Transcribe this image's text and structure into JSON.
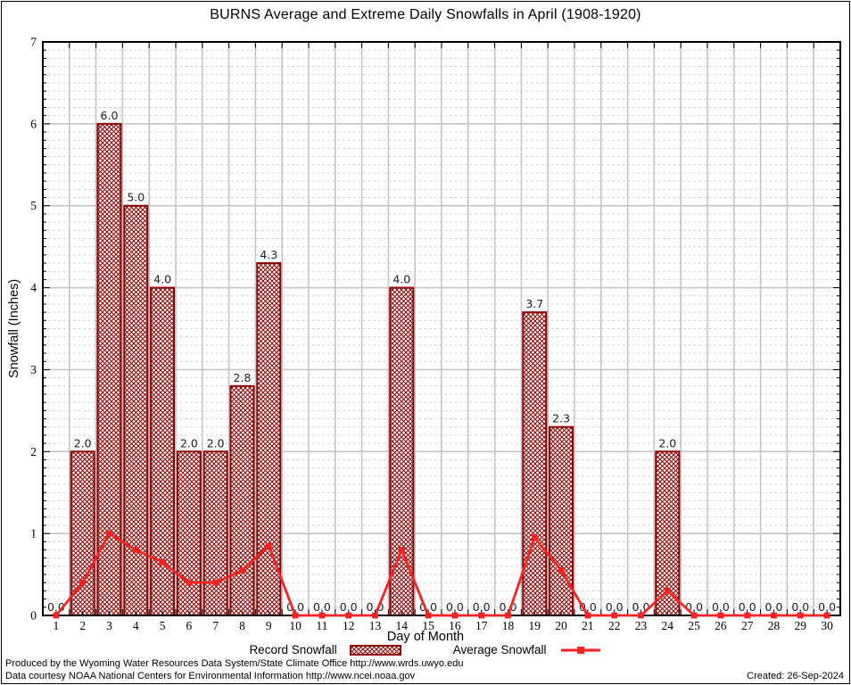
{
  "title": "BURNS Average and Extreme Daily Snowfalls in April (1908-1920)",
  "y_axis": {
    "label": "Snowfall (Inches)",
    "min": 0,
    "max": 7
  },
  "x_axis": {
    "label": "Day of Month"
  },
  "legend": {
    "record": "Record Snowfall",
    "average": "Average Snowfall"
  },
  "footer": {
    "line1": "Produced by the Wyoming Water Resources Data System/State Climate Office http://www.wrds.uwyo.edu",
    "line2": "Data courtesy NOAA National Centers for Environmental Information http://www.ncei.noaa.gov",
    "created": "Created: 26-Sep-2024"
  },
  "colors": {
    "bar": "#8b0000",
    "average_line": "#f72222",
    "grid_major": "#c4c4c4",
    "grid_minor": "#c9c9c9",
    "value_label": "#1f1f1f",
    "frame": "#000000"
  },
  "chart_data": {
    "type": "bar",
    "title": "BURNS Average and Extreme Daily Snowfalls in April (1908-1920)",
    "xlabel": "Day of Month",
    "ylabel": "Snowfall (Inches)",
    "ylim": [
      0,
      7
    ],
    "grid": "on (solid major, dashed 0.1 minor)",
    "legend_position": "bottom-center",
    "x": [
      1,
      2,
      3,
      4,
      5,
      6,
      7,
      8,
      9,
      10,
      11,
      12,
      13,
      14,
      15,
      16,
      17,
      18,
      19,
      20,
      21,
      22,
      23,
      24,
      25,
      26,
      27,
      28,
      29,
      30
    ],
    "x_ticks": [
      "1",
      "2",
      "3",
      "4",
      "5",
      "6",
      "7",
      "8",
      "9",
      "10",
      "11",
      "12",
      "13",
      "14",
      "15",
      "16",
      "17",
      "18",
      "19",
      "20",
      "21",
      "22",
      "23",
      "24",
      "25",
      "26",
      "27",
      "28",
      "29",
      "30"
    ],
    "y_ticks": [
      "0",
      "1",
      "2",
      "3",
      "4",
      "5",
      "6",
      "7"
    ],
    "series": [
      {
        "name": "Record Snowfall",
        "type": "bar",
        "style": "dark-red crosshatch",
        "values": [
          0,
          2.0,
          6.0,
          5.0,
          4.0,
          2.0,
          2.0,
          2.8,
          4.3,
          0,
          0,
          0,
          0,
          4.0,
          0,
          0,
          0,
          0,
          3.7,
          2.3,
          0,
          0,
          0,
          2.0,
          0,
          0,
          0,
          0,
          0,
          0
        ]
      },
      {
        "name": "Average Snowfall",
        "type": "line",
        "style": "red line with square markers",
        "values": [
          0,
          0.4,
          1.0,
          0.8,
          0.65,
          0.4,
          0.4,
          0.55,
          0.85,
          0,
          0,
          0,
          0,
          0.8,
          0,
          0,
          0,
          0,
          0.95,
          0.55,
          0,
          0,
          0,
          0.3,
          0,
          0,
          0,
          0,
          0,
          0
        ]
      }
    ],
    "bar_value_labels": [
      "0.0",
      "2.0",
      "6.0",
      "5.0",
      "4.0",
      "2.0",
      "2.0",
      "2.8",
      "4.3",
      "0.0",
      "0.0",
      "0.0",
      "0.0",
      "4.0",
      "0.0",
      "0.0",
      "0.0",
      "0.0",
      "3.7",
      "2.3",
      "0.0",
      "0.0",
      "0.0",
      "2.0",
      "0.0",
      "0.0",
      "0.0",
      "0.0",
      "0.0",
      "0.0"
    ]
  }
}
